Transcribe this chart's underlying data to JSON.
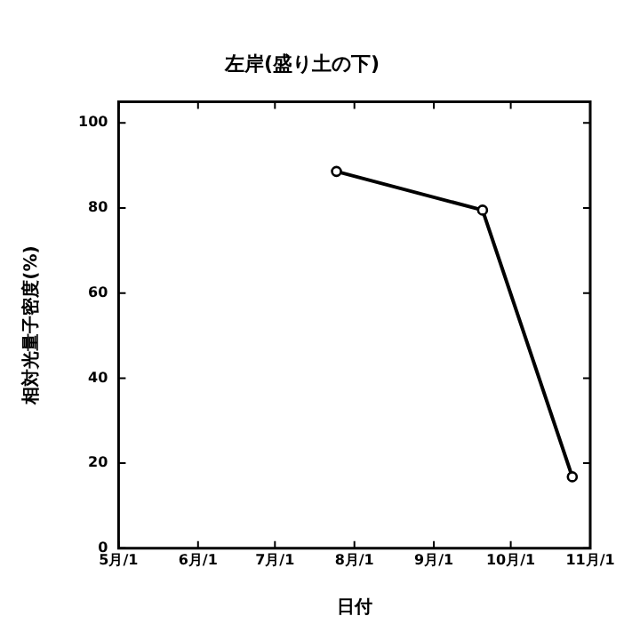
{
  "chart_data": {
    "type": "line",
    "title": "左岸(盛り土の下)",
    "xlabel": "日付",
    "ylabel": "相対光量子密度(%)",
    "x": [
      "--07-25",
      "--09-20",
      "--10-25"
    ],
    "series": [
      {
        "color": "#000000",
        "values": [
          88.6,
          79.5,
          16.8
        ]
      }
    ],
    "xlim": [
      "--05-01",
      "--11-01"
    ],
    "xticks": [
      {
        "value": "--05-01",
        "label": "5月/1"
      },
      {
        "value": "--06-01",
        "label": "6月/1"
      },
      {
        "value": "--07-01",
        "label": "7月/1"
      },
      {
        "value": "--08-01",
        "label": "8月/1"
      },
      {
        "value": "--09-01",
        "label": "9月/1"
      },
      {
        "value": "--10-01",
        "label": "10月/1"
      },
      {
        "value": "--11-01",
        "label": "11月/1"
      }
    ],
    "ylim": [
      0,
      105
    ],
    "yticks": [
      0,
      20,
      40,
      60,
      80,
      100
    ],
    "grid": false,
    "legend": false,
    "marker": "circle",
    "line_style": "solid"
  }
}
